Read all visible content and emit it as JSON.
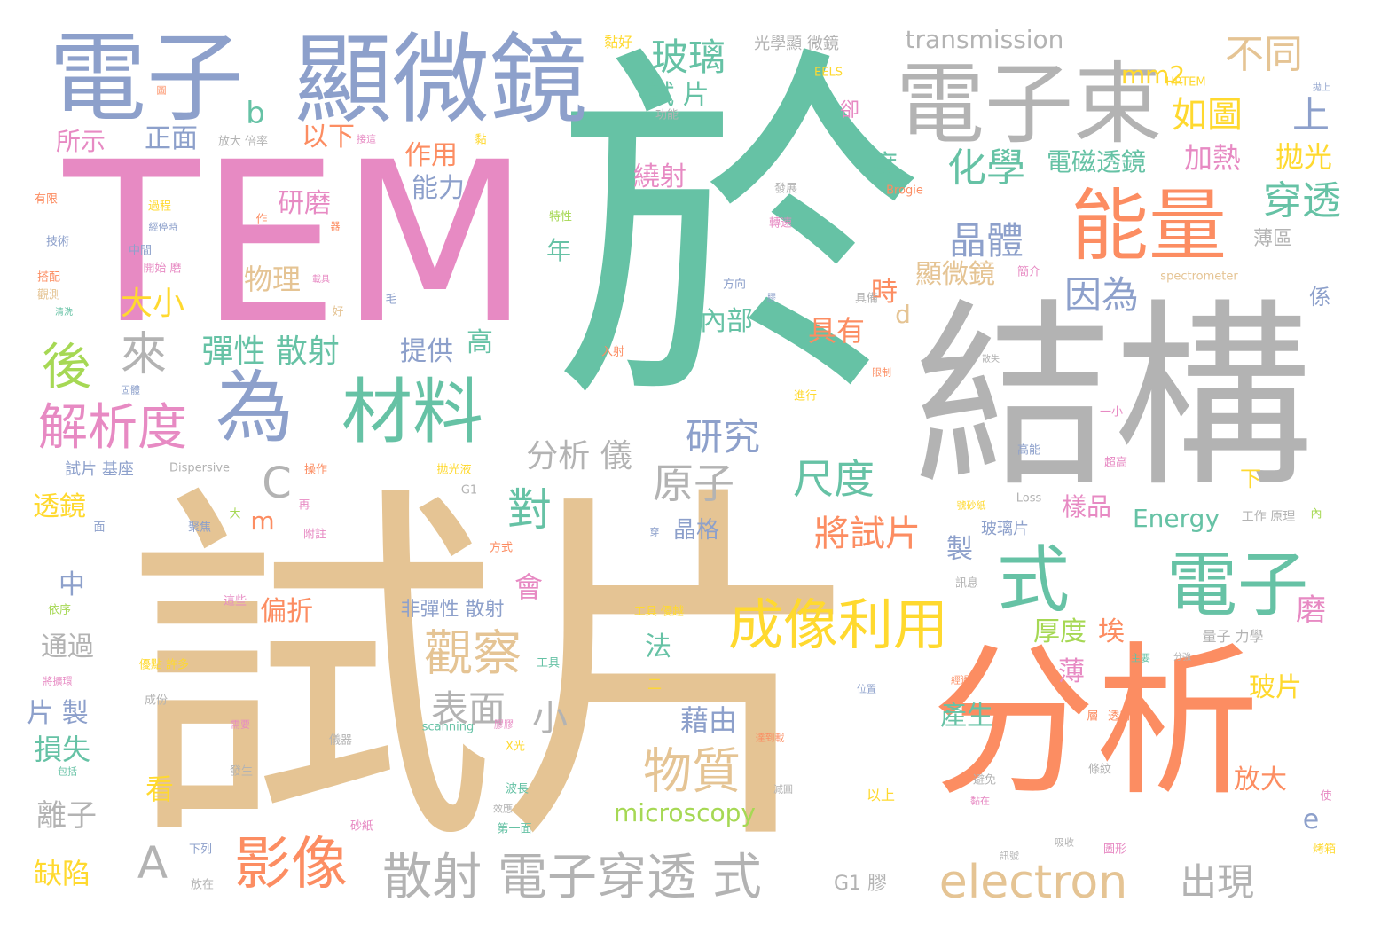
{
  "palette": {
    "green": "#66c2a5",
    "orange": "#fc8d62",
    "blue": "#8da0cb",
    "pink": "#e78ac3",
    "lime": "#a6d854",
    "yellow": "#ffd92f",
    "tan": "#e5c494",
    "gray": "#b3b3b3"
  },
  "words": [
    {
      "text": "於",
      "color": "#66c2a5"
    },
    {
      "text": "試片",
      "color": "#e5c494"
    },
    {
      "text": "TEM",
      "color": "#e78ac3"
    },
    {
      "text": "結構",
      "color": "#b3b3b3"
    },
    {
      "text": "分析",
      "color": "#fc8d62"
    },
    {
      "text": "顯微鏡",
      "color": "#8da0cb"
    },
    {
      "text": "電子",
      "color": "#8da0cb"
    },
    {
      "text": "電子束",
      "color": "#b3b3b3"
    },
    {
      "text": "能量",
      "color": "#fc8d62"
    },
    {
      "text": "為",
      "color": "#8da0cb"
    },
    {
      "text": "材料",
      "color": "#66c2a5"
    },
    {
      "text": "電子",
      "color": "#66c2a5"
    },
    {
      "text": "式",
      "color": "#66c2a5"
    },
    {
      "text": "成像利用",
      "color": "#ffd92f"
    },
    {
      "text": "electron",
      "color": "#e5c494"
    },
    {
      "text": "影像",
      "color": "#fc8d62"
    },
    {
      "text": "散射 電子穿透 式",
      "color": "#b3b3b3"
    },
    {
      "text": "解析度",
      "color": "#e78ac3"
    },
    {
      "text": "觀察",
      "color": "#e5c494"
    },
    {
      "text": "物質",
      "color": "#e5c494"
    },
    {
      "text": "後",
      "color": "#a6d854"
    },
    {
      "text": "來",
      "color": "#b3b3b3"
    },
    {
      "text": "對",
      "color": "#66c2a5"
    },
    {
      "text": "玻璃",
      "color": "#66c2a5"
    },
    {
      "text": "不同",
      "color": "#e5c494"
    },
    {
      "text": "如圖",
      "color": "#ffd92f"
    },
    {
      "text": "上",
      "color": "#8da0cb"
    },
    {
      "text": "化學",
      "color": "#66c2a5"
    },
    {
      "text": "晶體",
      "color": "#8da0cb"
    },
    {
      "text": "穿透",
      "color": "#66c2a5"
    },
    {
      "text": "因為",
      "color": "#8da0cb"
    },
    {
      "text": "研究",
      "color": "#8da0cb"
    },
    {
      "text": "原子",
      "color": "#b3b3b3"
    },
    {
      "text": "尺度",
      "color": "#66c2a5"
    },
    {
      "text": "將試片",
      "color": "#fc8d62"
    },
    {
      "text": "表面",
      "color": "#b3b3b3"
    },
    {
      "text": "分析 儀",
      "color": "#b3b3b3"
    },
    {
      "text": "出現",
      "color": "#b3b3b3"
    },
    {
      "text": "彈性 散射",
      "color": "#66c2a5"
    },
    {
      "text": "大小",
      "color": "#ffd92f"
    },
    {
      "text": "C",
      "color": "#b3b3b3"
    },
    {
      "text": "A",
      "color": "#b3b3b3"
    },
    {
      "text": "b",
      "color": "#66c2a5"
    },
    {
      "text": "mm2",
      "color": "#ffd92f"
    },
    {
      "text": "transmission",
      "color": "#b3b3b3"
    },
    {
      "text": "microscopy",
      "color": "#a6d854"
    },
    {
      "text": "Energy",
      "color": "#66c2a5"
    },
    {
      "text": "電磁透鏡",
      "color": "#66c2a5"
    },
    {
      "text": "加熱",
      "color": "#e78ac3"
    },
    {
      "text": "拋光",
      "color": "#ffd92f"
    },
    {
      "text": "研磨",
      "color": "#e78ac3"
    },
    {
      "text": "作用",
      "color": "#fc8d62"
    },
    {
      "text": "能力",
      "color": "#8da0cb"
    },
    {
      "text": "繞射",
      "color": "#e78ac3"
    },
    {
      "text": "試 片",
      "color": "#66c2a5"
    },
    {
      "text": "度",
      "color": "#66c2a5"
    },
    {
      "text": "時",
      "color": "#fc8d62"
    },
    {
      "text": "顯微鏡",
      "color": "#e5c494"
    },
    {
      "text": "具有",
      "color": "#fc8d62"
    },
    {
      "text": "內部",
      "color": "#66c2a5"
    },
    {
      "text": "提供",
      "color": "#8da0cb"
    },
    {
      "text": "高",
      "color": "#66c2a5"
    },
    {
      "text": "物理",
      "color": "#e5c494"
    },
    {
      "text": "所示",
      "color": "#e78ac3"
    },
    {
      "text": "正面",
      "color": "#8da0cb"
    },
    {
      "text": "以下",
      "color": "#fc8d62"
    },
    {
      "text": "透鏡",
      "color": "#ffd92f"
    },
    {
      "text": "中",
      "color": "#8da0cb"
    },
    {
      "text": "通過",
      "color": "#b3b3b3"
    },
    {
      "text": "片 製",
      "color": "#8da0cb"
    },
    {
      "text": "損失",
      "color": "#66c2a5"
    },
    {
      "text": "離子",
      "color": "#b3b3b3"
    },
    {
      "text": "缺陷",
      "color": "#ffd92f"
    },
    {
      "text": "看",
      "color": "#ffd92f"
    },
    {
      "text": "小",
      "color": "#b3b3b3"
    },
    {
      "text": "偏折",
      "color": "#fc8d62"
    },
    {
      "text": "會",
      "color": "#e78ac3"
    },
    {
      "text": "非彈性 散射",
      "color": "#8da0cb"
    },
    {
      "text": "法",
      "color": "#66c2a5"
    },
    {
      "text": "藉由",
      "color": "#8da0cb"
    },
    {
      "text": "晶格",
      "color": "#8da0cb"
    },
    {
      "text": "m",
      "color": "#fc8d62"
    },
    {
      "text": "年",
      "color": "#66c2a5"
    },
    {
      "text": "樣品",
      "color": "#e78ac3"
    },
    {
      "text": "製",
      "color": "#8da0cb"
    },
    {
      "text": "磨",
      "color": "#e78ac3"
    },
    {
      "text": "厚度",
      "color": "#a6d854"
    },
    {
      "text": "埃",
      "color": "#fc8d62"
    },
    {
      "text": "薄",
      "color": "#e78ac3"
    },
    {
      "text": "產生",
      "color": "#66c2a5"
    },
    {
      "text": "玻片",
      "color": "#ffd92f"
    },
    {
      "text": "放大",
      "color": "#fc8d62"
    },
    {
      "text": "e",
      "color": "#8da0cb"
    },
    {
      "text": "G1 膠",
      "color": "#b3b3b3"
    },
    {
      "text": "d",
      "color": "#e5c494"
    },
    {
      "text": "下",
      "color": "#ffd92f"
    },
    {
      "text": "薄區",
      "color": "#b3b3b3"
    },
    {
      "text": "係",
      "color": "#8da0cb"
    },
    {
      "text": "玻璃片",
      "color": "#8da0cb"
    },
    {
      "text": "工作 原理",
      "color": "#b3b3b3"
    },
    {
      "text": "光學顯 微鏡",
      "color": "#b3b3b3"
    },
    {
      "text": "黏好",
      "color": "#ffd92f"
    },
    {
      "text": "EELS",
      "color": "#ffd92f"
    },
    {
      "text": "卻",
      "color": "#e78ac3"
    },
    {
      "text": "HRTEM",
      "color": "#ffd92f"
    },
    {
      "text": "拋上",
      "color": "#8da0cb"
    },
    {
      "text": "功能",
      "color": "#b3b3b3"
    },
    {
      "text": "放大 倍率",
      "color": "#b3b3b3"
    },
    {
      "text": "接這",
      "color": "#e78ac3"
    },
    {
      "text": "黏",
      "color": "#ffd92f"
    },
    {
      "text": "發展",
      "color": "#b3b3b3"
    },
    {
      "text": "Brogie",
      "color": "#fc8d62"
    },
    {
      "text": "轉速",
      "color": "#e78ac3"
    },
    {
      "text": "簡介",
      "color": "#e78ac3"
    },
    {
      "text": "spectrometer",
      "color": "#e5c494"
    },
    {
      "text": "方向",
      "color": "#8da0cb"
    },
    {
      "text": "具備",
      "color": "#b3b3b3"
    },
    {
      "text": "膠",
      "color": "#8da0cb"
    },
    {
      "text": "特性",
      "color": "#a6d854"
    },
    {
      "text": "入射",
      "color": "#fc8d62"
    },
    {
      "text": "散失",
      "color": "#b3b3b3"
    },
    {
      "text": "限制",
      "color": "#fc8d62"
    },
    {
      "text": "進行",
      "color": "#ffd92f"
    },
    {
      "text": "一小",
      "color": "#e78ac3"
    },
    {
      "text": "高能",
      "color": "#8da0cb"
    },
    {
      "text": "超高",
      "color": "#e78ac3"
    },
    {
      "text": "Loss",
      "color": "#b3b3b3"
    },
    {
      "text": "拋光液",
      "color": "#ffd92f"
    },
    {
      "text": "G1",
      "color": "#b3b3b3"
    },
    {
      "text": "Dispersive",
      "color": "#b3b3b3"
    },
    {
      "text": "操作",
      "color": "#fc8d62"
    },
    {
      "text": "號砂紙",
      "color": "#ffd92f"
    },
    {
      "text": "內",
      "color": "#a6d854"
    },
    {
      "text": "試片 基座",
      "color": "#8da0cb"
    },
    {
      "text": "有限",
      "color": "#fc8d62"
    },
    {
      "text": "技術",
      "color": "#8da0cb"
    },
    {
      "text": "搭配",
      "color": "#fc8d62"
    },
    {
      "text": "觀測",
      "color": "#e5c494"
    },
    {
      "text": "清洗",
      "color": "#66c2a5"
    },
    {
      "text": "中間",
      "color": "#8da0cb"
    },
    {
      "text": "開始 磨",
      "color": "#e78ac3"
    },
    {
      "text": "過程",
      "color": "#ffd92f"
    },
    {
      "text": "經停時",
      "color": "#8da0cb"
    },
    {
      "text": "作",
      "color": "#fc8d62"
    },
    {
      "text": "器",
      "color": "#fc8d62"
    },
    {
      "text": "載具",
      "color": "#e78ac3"
    },
    {
      "text": "毛",
      "color": "#8da0cb"
    },
    {
      "text": "好",
      "color": "#e5c494"
    },
    {
      "text": "圖",
      "color": "#fc8d62"
    },
    {
      "text": "固體",
      "color": "#8da0cb"
    },
    {
      "text": "聚焦",
      "color": "#8da0cb"
    },
    {
      "text": "大",
      "color": "#a6d854"
    },
    {
      "text": "再",
      "color": "#e78ac3"
    },
    {
      "text": "附註",
      "color": "#e78ac3"
    },
    {
      "text": "面",
      "color": "#8da0cb"
    },
    {
      "text": "方式",
      "color": "#fc8d62"
    },
    {
      "text": "穿",
      "color": "#8da0cb"
    },
    {
      "text": "這些",
      "color": "#e78ac3"
    },
    {
      "text": "依序",
      "color": "#a6d854"
    },
    {
      "text": "工具",
      "color": "#66c2a5"
    },
    {
      "text": "優點 許多",
      "color": "#ffd92f"
    },
    {
      "text": "將擴環",
      "color": "#e78ac3"
    },
    {
      "text": "工具 優越",
      "color": "#ffd92f"
    },
    {
      "text": "X光",
      "color": "#ffd92f"
    },
    {
      "text": "scanning",
      "color": "#66c2a5"
    },
    {
      "text": "膠膠",
      "color": "#e78ac3"
    },
    {
      "text": "二",
      "color": "#ffd92f"
    },
    {
      "text": "儀器",
      "color": "#b3b3b3"
    },
    {
      "text": "成份",
      "color": "#b3b3b3"
    },
    {
      "text": "需要",
      "color": "#e78ac3"
    },
    {
      "text": "包括",
      "color": "#66c2a5"
    },
    {
      "text": "發生",
      "color": "#b3b3b3"
    },
    {
      "text": "波長",
      "color": "#66c2a5"
    },
    {
      "text": "效應",
      "color": "#b3b3b3"
    },
    {
      "text": "第一面",
      "color": "#66c2a5"
    },
    {
      "text": "砂紙",
      "color": "#e78ac3"
    },
    {
      "text": "下列",
      "color": "#8da0cb"
    },
    {
      "text": "放在",
      "color": "#b3b3b3"
    },
    {
      "text": "減圓",
      "color": "#b3b3b3"
    },
    {
      "text": "避免",
      "color": "#b3b3b3"
    },
    {
      "text": "黏在",
      "color": "#e78ac3"
    },
    {
      "text": "以上",
      "color": "#ffd92f"
    },
    {
      "text": "條紋",
      "color": "#b3b3b3"
    },
    {
      "text": "吸收",
      "color": "#b3b3b3"
    },
    {
      "text": "圖形",
      "color": "#e78ac3"
    },
    {
      "text": "訊號",
      "color": "#b3b3b3"
    },
    {
      "text": "烤箱",
      "color": "#ffd92f"
    },
    {
      "text": "使",
      "color": "#e78ac3"
    },
    {
      "text": "量子 力學",
      "color": "#b3b3b3"
    },
    {
      "text": "主要",
      "color": "#66c2a5"
    },
    {
      "text": "分強",
      "color": "#b3b3b3"
    },
    {
      "text": "經過",
      "color": "#fc8d62"
    },
    {
      "text": "位置",
      "color": "#8da0cb"
    },
    {
      "text": "達到載",
      "color": "#fc8d62"
    },
    {
      "text": "訊息",
      "color": "#b3b3b3"
    },
    {
      "text": "透射",
      "color": "#fc8d62"
    },
    {
      "text": "層",
      "color": "#fc8d62"
    }
  ]
}
